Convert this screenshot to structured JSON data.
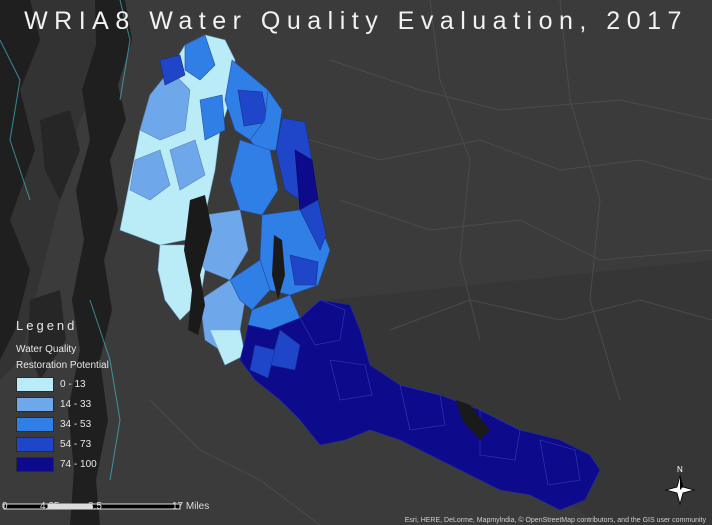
{
  "title": "WRIA8 Water Quality Evaluation, 2017",
  "legend": {
    "title": "Legend",
    "subtitle_line1": "Water Quality",
    "subtitle_line2": "Restoration Potential",
    "classes": [
      {
        "label": "0 - 13",
        "color": "#b9ecf7"
      },
      {
        "label": "14 - 33",
        "color": "#6fa8ea"
      },
      {
        "label": "34 - 53",
        "color": "#2f7fe6"
      },
      {
        "label": "54 - 73",
        "color": "#1f45c9"
      },
      {
        "label": "74 - 100",
        "color": "#0d0b8c"
      }
    ]
  },
  "scale_bar": {
    "ticks": [
      "0",
      "4.25",
      "8.5",
      "17 Miles"
    ]
  },
  "attribution": "Esri, HERE, DeLorme, Mapmylndia, © OpenStreetMap contributors, and the GIS user community",
  "colors": {
    "background": "#3a3a3a",
    "water": "#202020",
    "lake": "#1a1a1a",
    "text": "#f2f2f2"
  }
}
